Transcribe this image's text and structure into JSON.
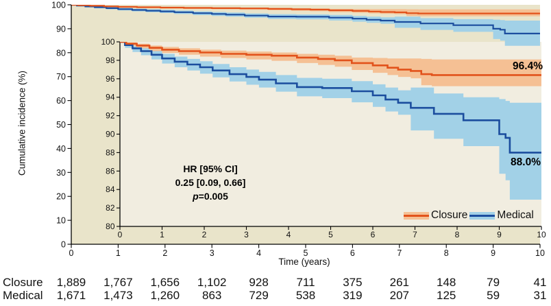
{
  "chart_data": {
    "type": "line",
    "subtype": "kaplan-meier-step-with-inset",
    "title": "",
    "xlabel": "Time (years)",
    "ylabel": "Cumulative incidence (%)",
    "main_axis": {
      "xlim": [
        0,
        10
      ],
      "ylim": [
        0,
        100
      ],
      "xticks": [
        0,
        1,
        2,
        3,
        4,
        5,
        6,
        7,
        8,
        9,
        10
      ],
      "yticks": [
        0,
        10,
        20,
        30,
        40,
        50,
        60,
        70,
        80,
        90,
        100
      ]
    },
    "inset_axis": {
      "xlim": [
        0,
        10
      ],
      "ylim": [
        80,
        100
      ],
      "xticks": [
        0,
        1,
        2,
        3,
        4,
        5,
        6,
        7,
        8,
        9,
        10
      ],
      "yticks": [
        80,
        82,
        84,
        86,
        88,
        90,
        92,
        94,
        96,
        98,
        100
      ]
    },
    "series": [
      {
        "name": "Closure",
        "color": "#e2521b",
        "band_color": "#f5c094",
        "end_label": "96.4%",
        "points": [
          [
            0,
            100,
            99.9,
            100
          ],
          [
            0.15,
            99.8,
            99.55,
            99.95
          ],
          [
            0.4,
            99.6,
            99.3,
            99.8
          ],
          [
            0.7,
            99.35,
            99.0,
            99.6
          ],
          [
            1.0,
            99.15,
            98.8,
            99.45
          ],
          [
            1.4,
            99.0,
            98.6,
            99.3
          ],
          [
            1.9,
            98.85,
            98.4,
            99.15
          ],
          [
            2.4,
            98.7,
            98.25,
            99.05
          ],
          [
            3.0,
            98.6,
            98.1,
            98.95
          ],
          [
            3.6,
            98.5,
            97.95,
            98.85
          ],
          [
            4.2,
            98.3,
            97.7,
            98.7
          ],
          [
            4.7,
            98.15,
            97.5,
            98.6
          ],
          [
            5.1,
            98.0,
            97.3,
            98.5
          ],
          [
            5.5,
            97.7,
            96.95,
            98.3
          ],
          [
            6.0,
            97.45,
            96.65,
            98.25
          ],
          [
            6.35,
            97.2,
            96.4,
            98.2
          ],
          [
            6.6,
            97.0,
            96.2,
            98.2
          ],
          [
            6.9,
            96.85,
            96.05,
            98.2
          ],
          [
            7.15,
            96.5,
            95.3,
            98.15
          ],
          [
            7.4,
            96.4,
            95.2,
            98.1
          ],
          [
            10,
            96.4,
            95.2,
            98.1
          ]
        ]
      },
      {
        "name": "Medical",
        "color": "#1b4d9e",
        "band_color": "#a2d1e7",
        "end_label": "88.0%",
        "points": [
          [
            0,
            100,
            99.9,
            100
          ],
          [
            0.12,
            99.65,
            99.35,
            99.85
          ],
          [
            0.3,
            99.3,
            98.9,
            99.6
          ],
          [
            0.5,
            99.0,
            98.55,
            99.35
          ],
          [
            0.75,
            98.6,
            98.1,
            99.0
          ],
          [
            1.0,
            98.2,
            97.65,
            98.7
          ],
          [
            1.3,
            97.85,
            97.25,
            98.4
          ],
          [
            1.6,
            97.55,
            96.9,
            98.15
          ],
          [
            1.9,
            97.25,
            96.55,
            97.9
          ],
          [
            2.2,
            96.9,
            96.15,
            97.6
          ],
          [
            2.6,
            96.5,
            95.7,
            97.25
          ],
          [
            3.0,
            96.2,
            95.35,
            97.0
          ],
          [
            3.3,
            95.9,
            95.05,
            96.75
          ],
          [
            3.7,
            95.5,
            94.6,
            96.4
          ],
          [
            4.2,
            95.1,
            94.1,
            96.1
          ],
          [
            4.8,
            95.0,
            93.9,
            96.0
          ],
          [
            5.5,
            94.65,
            93.45,
            95.75
          ],
          [
            6.0,
            94.2,
            92.95,
            95.4
          ],
          [
            6.3,
            93.75,
            92.45,
            95.05
          ],
          [
            6.6,
            93.4,
            92.1,
            94.75
          ],
          [
            6.9,
            92.85,
            90.4,
            95.05
          ],
          [
            7.45,
            92.2,
            89.5,
            94.4
          ],
          [
            8.15,
            91.5,
            88.7,
            94.0
          ],
          [
            9.0,
            90.0,
            85.7,
            93.8
          ],
          [
            9.15,
            89.6,
            85.0,
            93.6
          ],
          [
            9.25,
            88.0,
            82.9,
            93.4
          ],
          [
            10,
            88.0,
            82.9,
            93.4
          ]
        ]
      }
    ],
    "annotation": {
      "line1": "HR [95% CI]",
      "line2": "0.25 [0.09, 0.66]",
      "p_italic": "p",
      "p_rest": "=0.005"
    },
    "legend": {
      "position": "inset-bottom-right",
      "items": [
        "Closure",
        "Medical"
      ]
    },
    "risk_table": {
      "rows": [
        {
          "label": "Closure",
          "values": [
            "1,889",
            "1,767",
            "1,656",
            "1,102",
            "928",
            "711",
            "375",
            "261",
            "148",
            "79",
            "41"
          ]
        },
        {
          "label": "Medical",
          "values": [
            "1,671",
            "1,473",
            "1,260",
            "863",
            "729",
            "538",
            "319",
            "207",
            "125",
            "59",
            "31"
          ]
        }
      ]
    },
    "colors": {
      "main_bg": "#e9e4ca",
      "inset_bg": "#f1ede0",
      "axis": "#000000",
      "text": "#111111"
    }
  }
}
